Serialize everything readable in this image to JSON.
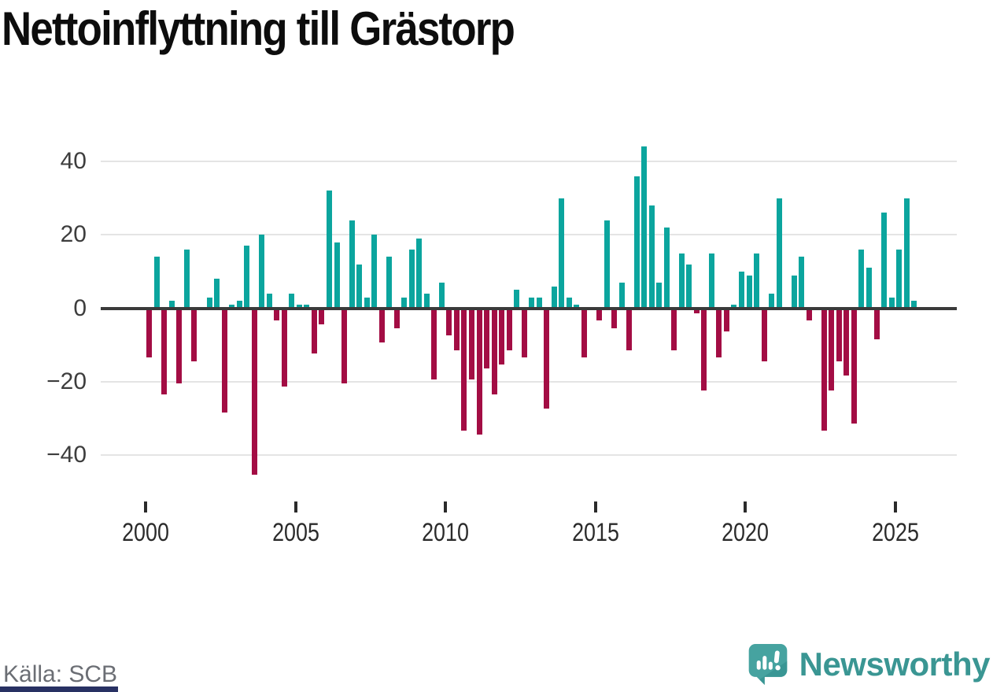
{
  "title": "Nettoinflyttning till Grästorp",
  "source": "Källa: SCB",
  "logo": {
    "wordmark": "Newsworthy",
    "icon": "bar-chart-speech-bubble",
    "color": "#3a9693",
    "bubble_color": "#46a3a0",
    "bubble_shadow_color": "#2f8d8a"
  },
  "colors": {
    "positive_bar": "#0ba59e",
    "negative_bar": "#a30d44",
    "axis_line": "#3a3a3a",
    "gridline": "#e4e4e4",
    "tick_label": "#3d3d3d",
    "title": "#0d0d0d",
    "source": "#6b6e74",
    "bottom_accent": "#283163"
  },
  "chart_data": {
    "type": "bar",
    "title": "Nettoinflyttning till Grästorp",
    "x_unit": "quarter",
    "start": "2000-Q1",
    "end": "2025-Q3",
    "xlabel": "",
    "ylabel": "",
    "yticks": [
      40,
      20,
      0,
      -20,
      -40
    ],
    "ylim": [
      -48,
      46
    ],
    "x_tick_years": [
      2000,
      2005,
      2010,
      2015,
      2020,
      2025
    ],
    "grid": "horizontal",
    "legend": "none",
    "years": [
      {
        "year": 2000,
        "values": [
          -13,
          14,
          -23,
          2
        ]
      },
      {
        "year": 2001,
        "values": [
          -20,
          16,
          -14,
          0
        ]
      },
      {
        "year": 2002,
        "values": [
          3,
          8,
          -28,
          1
        ]
      },
      {
        "year": 2003,
        "values": [
          2,
          17,
          -45,
          20
        ]
      },
      {
        "year": 2004,
        "values": [
          4,
          -3,
          -21,
          4
        ]
      },
      {
        "year": 2005,
        "values": [
          1,
          1,
          -12,
          -4
        ]
      },
      {
        "year": 2006,
        "values": [
          32,
          18,
          -20,
          24
        ]
      },
      {
        "year": 2007,
        "values": [
          12,
          3,
          20,
          -9
        ]
      },
      {
        "year": 2008,
        "values": [
          14,
          -5,
          3,
          16
        ]
      },
      {
        "year": 2009,
        "values": [
          19,
          4,
          -19,
          7
        ]
      },
      {
        "year": 2010,
        "values": [
          -7,
          -11,
          -33,
          -19
        ]
      },
      {
        "year": 2011,
        "values": [
          -34,
          -16,
          -23,
          -15
        ]
      },
      {
        "year": 2012,
        "values": [
          -11,
          5,
          -13,
          3
        ]
      },
      {
        "year": 2013,
        "values": [
          3,
          -27,
          6,
          30
        ]
      },
      {
        "year": 2014,
        "values": [
          3,
          1,
          -13,
          0
        ]
      },
      {
        "year": 2015,
        "values": [
          -3,
          24,
          -5,
          7
        ]
      },
      {
        "year": 2016,
        "values": [
          -11,
          36,
          44,
          28
        ]
      },
      {
        "year": 2017,
        "values": [
          7,
          22,
          -11,
          15
        ]
      },
      {
        "year": 2018,
        "values": [
          12,
          -1,
          -22,
          15
        ]
      },
      {
        "year": 2019,
        "values": [
          -13,
          -6,
          1,
          10
        ]
      },
      {
        "year": 2020,
        "values": [
          9,
          15,
          -14,
          4
        ]
      },
      {
        "year": 2021,
        "values": [
          30,
          0,
          9,
          14
        ]
      },
      {
        "year": 2022,
        "values": [
          -3,
          0,
          -33,
          -22
        ]
      },
      {
        "year": 2023,
        "values": [
          -14,
          -18,
          -31,
          16
        ]
      },
      {
        "year": 2024,
        "values": [
          11,
          -8,
          26,
          3
        ]
      },
      {
        "year": 2025,
        "values": [
          16,
          30,
          2
        ]
      }
    ]
  }
}
